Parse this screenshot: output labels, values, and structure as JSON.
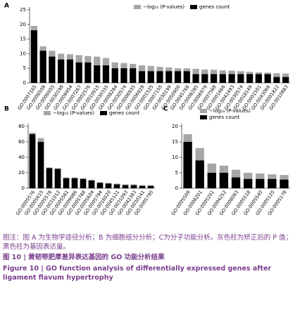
{
  "chart_data": [
    {
      "type": "bar",
      "panel": "A",
      "categories": [
        "GO:0007165",
        "GO:0006508",
        "GO:0006955",
        "GO:0030198",
        "GO:0006954",
        "GO:0007267",
        "GO:0002576",
        "GO:0010915",
        "GO:0030335",
        "GO:0008284",
        "GO:0030574",
        "GO:0006935",
        "GO:0006928",
        "GO:0001525",
        "GO:0007155",
        "GO:0030199",
        "GO:0050900",
        "GO:0045766",
        "GO:0008285",
        "GO:0006979",
        "GO:0007568",
        "GO:0001666",
        "GO:0042493",
        "GO:0030574",
        "GO:0018149",
        "GO:0001501",
        "GO:0043066",
        "GO:0001822",
        "GO:0010883"
      ],
      "series": [
        {
          "name": "−log₁₀ (P-values)",
          "color": "#a6a6a6",
          "values": [
            19.5,
            12.5,
            11,
            10,
            9.8,
            9.5,
            9.2,
            9,
            8.5,
            7,
            6.8,
            6.5,
            6,
            5.8,
            5.5,
            5.3,
            5,
            5,
            4.8,
            4.6,
            4.5,
            4.3,
            4.2,
            4,
            3.8,
            3.6,
            3.5,
            3.3,
            3.2
          ]
        },
        {
          "name": "genes count",
          "color": "#000000",
          "values": [
            18,
            11,
            9,
            8,
            8,
            7,
            7,
            6,
            6,
            5,
            5,
            5,
            4,
            4,
            4,
            4,
            4,
            4,
            3,
            3,
            3,
            3,
            3,
            3,
            3,
            3,
            3,
            2,
            2
          ]
        }
      ],
      "ylim": [
        0,
        25
      ],
      "yticks": [
        0,
        5,
        10,
        15,
        20,
        25
      ]
    },
    {
      "type": "bar",
      "panel": "B",
      "categories": [
        "GO:0005576",
        "GO:0005615",
        "GO:0005578",
        "GO:0031012",
        "GO:0005581",
        "GO:0009986",
        "GO:0005788",
        "GO:0005604",
        "GO:0005794",
        "GO:0016020",
        "GO:0045121",
        "GO:0031093",
        "GO:0042383",
        "GO:0030141",
        "GO:0005790"
      ],
      "series": [
        {
          "name": "−log₁₀ (P-values)",
          "color": "#a6a6a6",
          "values": [
            72,
            65,
            27,
            26,
            14,
            14,
            13,
            11,
            8,
            7,
            6,
            5,
            5,
            4,
            4
          ]
        },
        {
          "name": "genes count",
          "color": "#000000",
          "values": [
            70,
            60,
            26,
            25,
            13,
            13,
            12,
            10,
            7,
            6,
            5,
            4,
            4,
            3,
            3
          ]
        }
      ],
      "ylim": [
        0,
        80
      ],
      "yticks": [
        0,
        20,
        40,
        60,
        80
      ]
    },
    {
      "type": "bar",
      "panel": "C",
      "categories": [
        "GO:0005509",
        "GO:0008201",
        "GO:0005201",
        "GO:0004252",
        "GO:0008083",
        "GO:0005518",
        "GO:0005540",
        "GO:0005125",
        "GO:0005178"
      ],
      "series": [
        {
          "name": "−log₁₀ (P-values)",
          "color": "#a6a6a6",
          "values": [
            17.5,
            13,
            8,
            7.3,
            6,
            5,
            4.8,
            4.5,
            4.3
          ]
        },
        {
          "name": "genes count",
          "color": "#000000",
          "values": [
            15,
            9,
            5,
            5,
            3.5,
            3,
            3,
            3,
            2.8
          ]
        }
      ],
      "ylim": [
        0,
        20
      ],
      "yticks": [
        0,
        5,
        10,
        15,
        20
      ]
    }
  ],
  "caption": {
    "note": "图注：图 A 为生物学途径分析；B 为细胞组分分析；C为分子功能分析。灰色柱为矫正后的 P 值；黑色柱为基因表达量。",
    "title_cn": "图 10 | 黄韧带肥厚差异表达基因的 GO 功能分析结果",
    "title_en": "Figure 10 | GO function analysis of differentially expressed genes after ligament flavum hypertrophy"
  }
}
